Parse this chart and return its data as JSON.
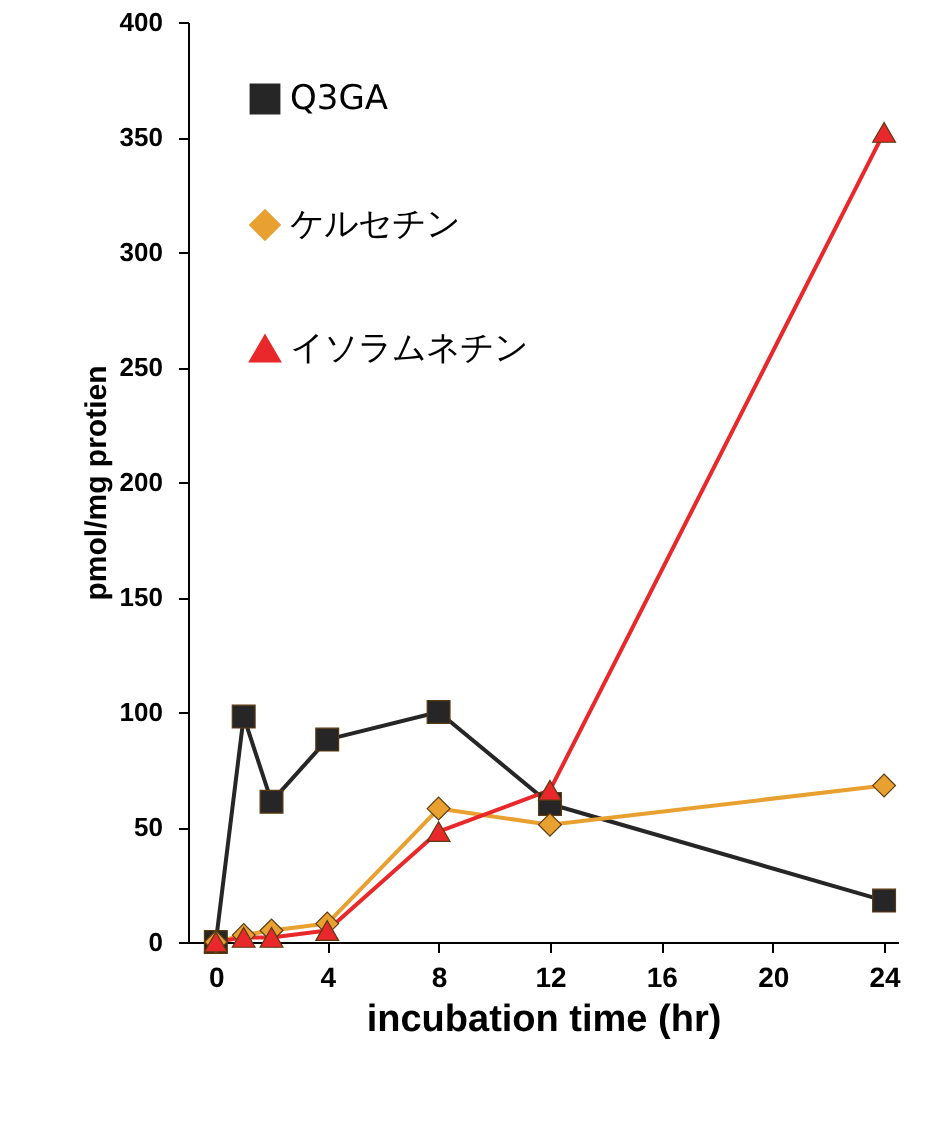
{
  "chart_data": {
    "type": "line",
    "xlabel": "incubation time (hr)",
    "ylabel": "pmol/mg protien",
    "x": [
      0,
      1,
      2,
      4,
      8,
      12,
      24
    ],
    "series": [
      {
        "name": "Q3GA",
        "color": "#262626",
        "marker": "square",
        "values": [
          0,
          98,
          61,
          88,
          100,
          60,
          18
        ]
      },
      {
        "name": "ケルセチン",
        "color": "#e8a030",
        "marker": "diamond",
        "values": [
          0,
          3,
          5,
          8,
          58,
          51,
          68
        ]
      },
      {
        "name": "イソラムネチン",
        "color": "#e8282a",
        "marker": "triangle",
        "values": [
          0,
          2,
          2,
          5,
          48,
          66,
          352
        ]
      }
    ],
    "xlim": [
      -1,
      24.5
    ],
    "xticks": [
      0,
      4,
      8,
      12,
      16,
      20,
      24
    ],
    "ylim": [
      0,
      400
    ],
    "yticks": [
      0,
      50,
      100,
      150,
      200,
      250,
      300,
      350,
      400
    ],
    "grid": false,
    "legend": "top left",
    "line_style": "solid"
  }
}
